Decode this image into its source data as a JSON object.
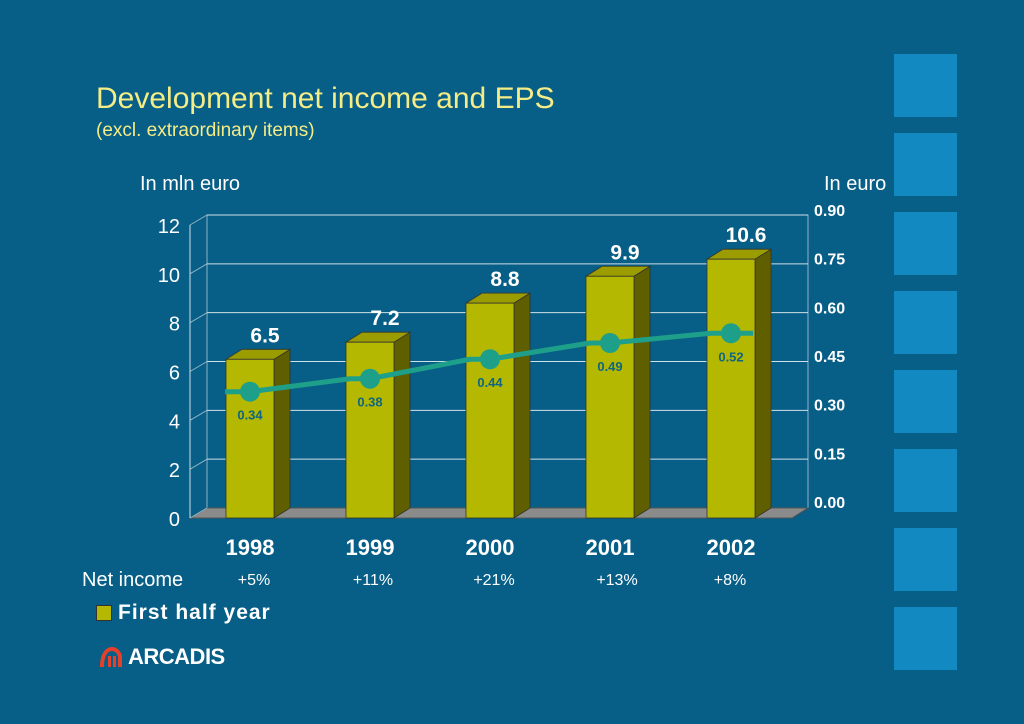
{
  "title": "Development net income and EPS",
  "subtitle": "(excl. extraordinary items)",
  "left_axis_label": "In mln euro",
  "right_axis_label": "In euro",
  "growth_label": "Net income",
  "legend_label": "First half year",
  "logo_text": "ARCADIS",
  "colors": {
    "background": "#075e86",
    "bar": "#b5b800",
    "line": "#1e9f8a",
    "title": "#f4ec86"
  },
  "chart_data": {
    "type": "bar",
    "categories": [
      "1998",
      "1999",
      "2000",
      "2001",
      "2002"
    ],
    "series": [
      {
        "name": "First half year",
        "axis": "left",
        "values": [
          6.5,
          7.2,
          8.8,
          9.9,
          10.6
        ],
        "labels": [
          "6.5",
          "7.2",
          "8.8",
          "9.9",
          "10.6"
        ]
      },
      {
        "type": "line",
        "axis": "right",
        "values": [
          0.34,
          0.38,
          0.44,
          0.49,
          0.52
        ],
        "labels": [
          "0.34",
          "0.38",
          "0.44",
          "0.49",
          "0.52"
        ]
      }
    ],
    "ylim_left": [
      0,
      12
    ],
    "ylim_right": [
      0,
      0.9
    ],
    "left_ticks": [
      "0",
      "2",
      "4",
      "6",
      "8",
      "10",
      "12"
    ],
    "right_ticks": [
      "0.00",
      "0.15",
      "0.30",
      "0.45",
      "0.60",
      "0.75",
      "0.90"
    ],
    "growth": [
      "+5%",
      "+11%",
      "+21%",
      "+13%",
      "+8%"
    ],
    "grid": true,
    "legend": "bottom-left"
  }
}
